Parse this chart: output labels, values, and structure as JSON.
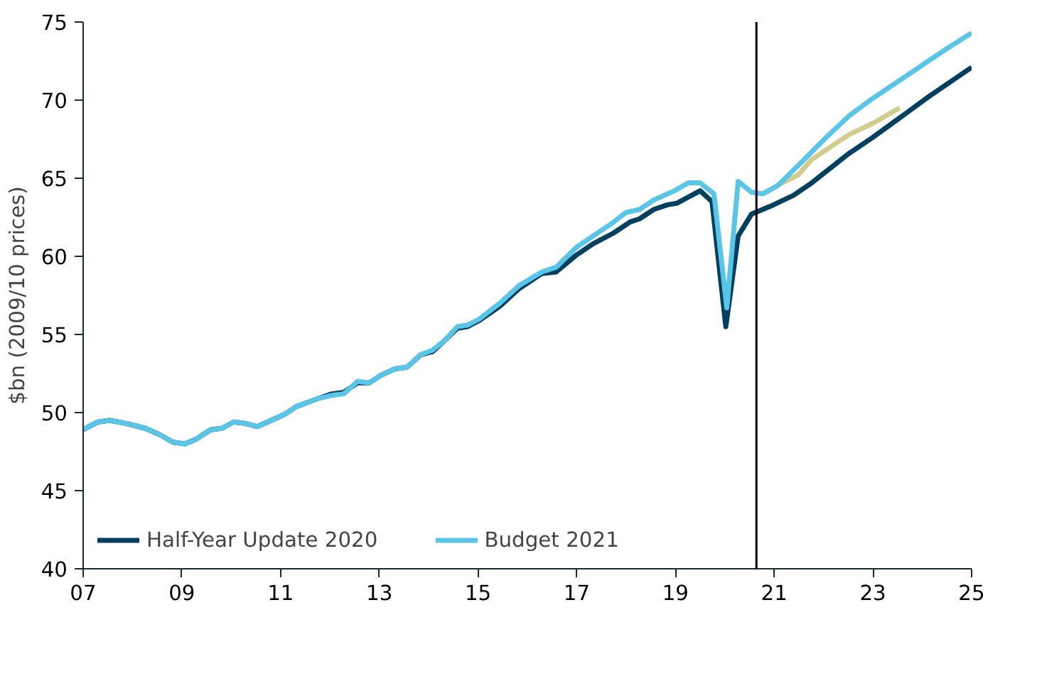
{
  "chart_data": {
    "type": "line",
    "ylabel": "$bn (2009/10 prices)",
    "xlim": [
      7,
      25
    ],
    "ylim": [
      40,
      75
    ],
    "xticks": [
      {
        "value": 7,
        "label": "07"
      },
      {
        "value": 9,
        "label": "09"
      },
      11,
      13,
      15,
      17,
      19,
      21,
      23,
      25
    ],
    "yticks": [
      40,
      45,
      50,
      55,
      60,
      65,
      70,
      75
    ],
    "grid": false,
    "legend": "bottom",
    "line_style": "solid",
    "marker": "none",
    "ref_lines": [
      {
        "axis": "x",
        "value": 20.64,
        "color": "#000000"
      }
    ],
    "series": [
      {
        "color": "#d3cc8f",
        "x": [
          20.77,
          21.1,
          21.48,
          21.76,
          22.52,
          22.99,
          23.54
        ],
        "values": [
          64.0,
          64.6,
          65.2,
          66.2,
          67.8,
          68.5,
          69.5
        ]
      },
      {
        "name": "Half-Year Update 2020",
        "color": "#003f5e",
        "x": [
          7.0,
          7.3,
          7.54,
          7.87,
          8.25,
          8.54,
          8.82,
          9.06,
          9.29,
          9.58,
          9.82,
          10.05,
          10.29,
          10.53,
          10.81,
          11.09,
          11.33,
          11.76,
          12.04,
          12.28,
          12.56,
          12.8,
          13.04,
          13.32,
          13.56,
          13.84,
          14.08,
          14.32,
          14.58,
          14.79,
          15.03,
          15.44,
          15.82,
          16.29,
          16.58,
          17.0,
          17.33,
          17.75,
          18.08,
          18.27,
          18.56,
          18.84,
          19.03,
          19.5,
          19.74,
          20.02,
          20.27,
          20.54,
          20.92,
          21.39,
          21.76,
          22.52,
          22.99,
          23.56,
          24.12,
          25.0
        ],
        "values": [
          48.9,
          49.4,
          49.5,
          49.3,
          49.0,
          48.6,
          48.1,
          48.0,
          48.3,
          48.9,
          49.0,
          49.4,
          49.3,
          49.1,
          49.5,
          49.9,
          50.4,
          50.9,
          51.2,
          51.3,
          51.9,
          51.9,
          52.4,
          52.8,
          52.9,
          53.7,
          53.9,
          54.6,
          55.4,
          55.5,
          55.9,
          56.8,
          57.9,
          58.9,
          59.0,
          60.1,
          60.8,
          61.5,
          62.2,
          62.4,
          63.0,
          63.3,
          63.4,
          64.2,
          63.5,
          55.5,
          61.3,
          62.7,
          63.2,
          63.9,
          64.7,
          66.6,
          67.6,
          68.9,
          70.2,
          72.1
        ]
      },
      {
        "name": "Budget 2021",
        "color": "#5bc5e8",
        "x": [
          7.0,
          7.3,
          7.54,
          7.87,
          8.25,
          8.54,
          8.82,
          9.06,
          9.29,
          9.58,
          9.82,
          10.05,
          10.29,
          10.53,
          10.81,
          11.09,
          11.33,
          11.76,
          12.04,
          12.28,
          12.56,
          12.8,
          13.04,
          13.32,
          13.56,
          13.84,
          14.08,
          14.32,
          14.58,
          14.79,
          15.03,
          15.44,
          15.82,
          16.29,
          16.58,
          17.0,
          17.33,
          17.75,
          17.99,
          18.27,
          18.56,
          18.98,
          19.26,
          19.5,
          19.78,
          20.04,
          20.27,
          20.54,
          20.77,
          21.06,
          21.48,
          22.05,
          22.52,
          22.99,
          23.56,
          24.12,
          24.5,
          25.0
        ],
        "values": [
          48.9,
          49.4,
          49.5,
          49.3,
          49.0,
          48.6,
          48.1,
          48.0,
          48.3,
          48.9,
          49.0,
          49.4,
          49.3,
          49.1,
          49.5,
          49.9,
          50.4,
          50.9,
          51.1,
          51.2,
          52.0,
          51.9,
          52.4,
          52.8,
          52.9,
          53.7,
          54.0,
          54.6,
          55.5,
          55.6,
          56.0,
          57.0,
          58.1,
          59.0,
          59.3,
          60.6,
          61.3,
          62.2,
          62.8,
          63.0,
          63.6,
          64.2,
          64.7,
          64.7,
          64.0,
          56.7,
          64.8,
          64.1,
          64.0,
          64.5,
          65.8,
          67.6,
          69.0,
          70.1,
          71.3,
          72.5,
          73.3,
          74.3
        ]
      }
    ]
  }
}
